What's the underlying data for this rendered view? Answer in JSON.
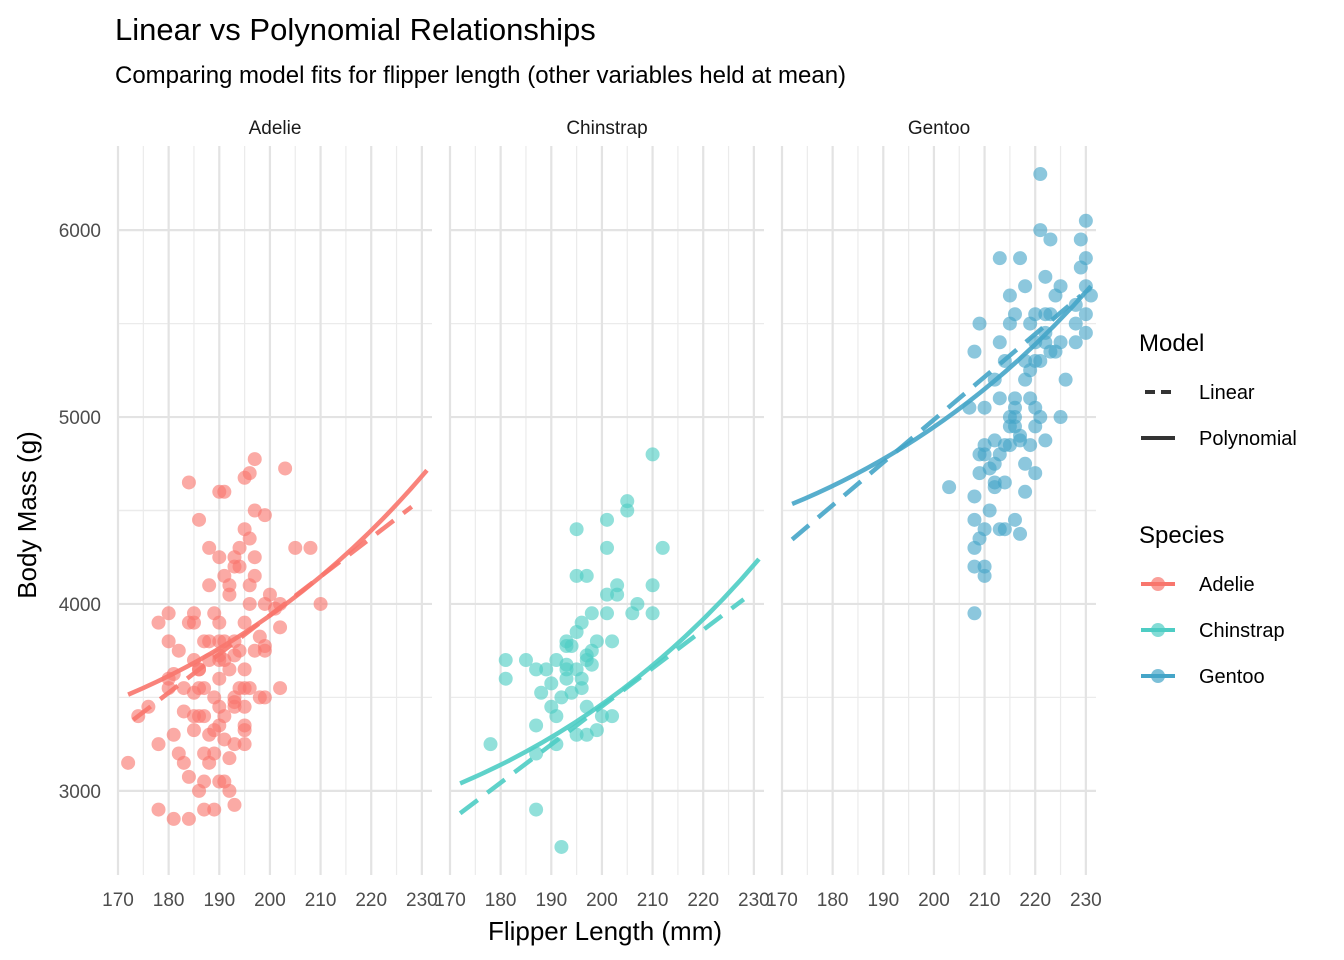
{
  "title": "Linear vs Polynomial Relationships",
  "subtitle": "Comparing model fits for flipper length (other variables held at mean)",
  "chart_data": {
    "type": "scatter",
    "facet_by": "species",
    "xlabel": "Flipper Length (mm)",
    "ylabel": "Body Mass (g)",
    "xlim": [
      170,
      232
    ],
    "ylim": [
      2550,
      6450
    ],
    "x_ticks": [
      170,
      180,
      190,
      200,
      210,
      220,
      230
    ],
    "y_ticks": [
      3000,
      4000,
      5000,
      6000
    ],
    "grid": true,
    "legend_position": "right",
    "legends": {
      "model": {
        "title": "Model",
        "items": [
          "Linear",
          "Polynomial"
        ]
      },
      "species": {
        "title": "Species",
        "items": [
          "Adelie",
          "Chinstrap",
          "Gentoo"
        ]
      }
    },
    "colors": {
      "Adelie": "#F8766D",
      "Chinstrap": "#4ECDC4",
      "Gentoo": "#45A5C8"
    },
    "facets": [
      {
        "name": "Adelie",
        "points": [
          [
            172,
            3150
          ],
          [
            174,
            3400
          ],
          [
            176,
            3450
          ],
          [
            178,
            3250
          ],
          [
            178,
            3900
          ],
          [
            178,
            2900
          ],
          [
            180,
            3800
          ],
          [
            180,
            3950
          ],
          [
            180,
            3550
          ],
          [
            180,
            3600
          ],
          [
            181,
            3625
          ],
          [
            181,
            3300
          ],
          [
            181,
            2850
          ],
          [
            182,
            3750
          ],
          [
            182,
            3200
          ],
          [
            183,
            3425
          ],
          [
            183,
            3150
          ],
          [
            183,
            3550
          ],
          [
            184,
            3075
          ],
          [
            184,
            3900
          ],
          [
            184,
            2850
          ],
          [
            184,
            4650
          ],
          [
            185,
            3325
          ],
          [
            185,
            3900
          ],
          [
            185,
            3525
          ],
          [
            185,
            3400
          ],
          [
            185,
            3700
          ],
          [
            185,
            3950
          ],
          [
            186,
            3650
          ],
          [
            186,
            3000
          ],
          [
            186,
            3400
          ],
          [
            186,
            3550
          ],
          [
            186,
            3650
          ],
          [
            186,
            4450
          ],
          [
            187,
            3800
          ],
          [
            187,
            3200
          ],
          [
            187,
            3400
          ],
          [
            187,
            3050
          ],
          [
            187,
            3550
          ],
          [
            187,
            2900
          ],
          [
            188,
            3300
          ],
          [
            188,
            3150
          ],
          [
            188,
            3800
          ],
          [
            188,
            3700
          ],
          [
            188,
            4100
          ],
          [
            188,
            4300
          ],
          [
            189,
            3325
          ],
          [
            189,
            3200
          ],
          [
            189,
            3500
          ],
          [
            189,
            3950
          ],
          [
            189,
            2900
          ],
          [
            190,
            3800
          ],
          [
            190,
            3600
          ],
          [
            190,
            3450
          ],
          [
            190,
            4250
          ],
          [
            190,
            3700
          ],
          [
            190,
            3900
          ],
          [
            190,
            3050
          ],
          [
            190,
            3350
          ],
          [
            190,
            4600
          ],
          [
            190,
            3725
          ],
          [
            191,
            3275
          ],
          [
            191,
            3700
          ],
          [
            191,
            4150
          ],
          [
            191,
            3400
          ],
          [
            191,
            3800
          ],
          [
            191,
            4600
          ],
          [
            191,
            3050
          ],
          [
            192,
            3000
          ],
          [
            192,
            3650
          ],
          [
            192,
            4050
          ],
          [
            192,
            4100
          ],
          [
            192,
            3175
          ],
          [
            193,
            3450
          ],
          [
            193,
            3800
          ],
          [
            193,
            4200
          ],
          [
            193,
            3475
          ],
          [
            193,
            2925
          ],
          [
            193,
            3500
          ],
          [
            193,
            4250
          ],
          [
            193,
            3250
          ],
          [
            193,
            3725
          ],
          [
            194,
            3550
          ],
          [
            194,
            4300
          ],
          [
            194,
            4200
          ],
          [
            194,
            3750
          ],
          [
            195,
            3325
          ],
          [
            195,
            3900
          ],
          [
            195,
            4400
          ],
          [
            195,
            3250
          ],
          [
            195,
            3650
          ],
          [
            195,
            3350
          ],
          [
            195,
            4675
          ],
          [
            195,
            3450
          ],
          [
            195,
            3550
          ],
          [
            196,
            4000
          ],
          [
            196,
            4350
          ],
          [
            196,
            4100
          ],
          [
            196,
            4700
          ],
          [
            196,
            3550
          ],
          [
            197,
            4250
          ],
          [
            197,
            3750
          ],
          [
            197,
            4500
          ],
          [
            197,
            4775
          ],
          [
            197,
            4150
          ],
          [
            198,
            3500
          ],
          [
            198,
            3825
          ],
          [
            199,
            3775
          ],
          [
            199,
            4000
          ],
          [
            199,
            3500
          ],
          [
            199,
            3750
          ],
          [
            199,
            4475
          ],
          [
            200,
            4050
          ],
          [
            201,
            3975
          ],
          [
            202,
            3875
          ],
          [
            202,
            4000
          ],
          [
            202,
            3550
          ],
          [
            203,
            4725
          ],
          [
            205,
            4300
          ],
          [
            208,
            4300
          ],
          [
            210,
            4000
          ]
        ],
        "linear": {
          "x": [
            173,
            228
          ],
          "y": [
            3380,
            4520
          ]
        },
        "polynomial": {
          "x": [
            172,
            231
          ],
          "y": [
            3515,
            4715
          ]
        }
      },
      {
        "name": "Chinstrap",
        "points": [
          [
            178,
            3250
          ],
          [
            181,
            3700
          ],
          [
            181,
            3600
          ],
          [
            185,
            3700
          ],
          [
            187,
            3650
          ],
          [
            187,
            3350
          ],
          [
            187,
            3200
          ],
          [
            187,
            2900
          ],
          [
            188,
            3525
          ],
          [
            189,
            3650
          ],
          [
            190,
            3450
          ],
          [
            190,
            3575
          ],
          [
            191,
            3250
          ],
          [
            191,
            3400
          ],
          [
            191,
            3700
          ],
          [
            192,
            3500
          ],
          [
            192,
            2700
          ],
          [
            193,
            3800
          ],
          [
            193,
            3675
          ],
          [
            193,
            3650
          ],
          [
            193,
            3775
          ],
          [
            193,
            3600
          ],
          [
            194,
            3525
          ],
          [
            194,
            3775
          ],
          [
            195,
            3300
          ],
          [
            195,
            3850
          ],
          [
            195,
            4150
          ],
          [
            195,
            4400
          ],
          [
            195,
            3650
          ],
          [
            196,
            3550
          ],
          [
            196,
            3600
          ],
          [
            196,
            3900
          ],
          [
            197,
            3725
          ],
          [
            197,
            3700
          ],
          [
            197,
            3450
          ],
          [
            197,
            3300
          ],
          [
            197,
            4150
          ],
          [
            198,
            3675
          ],
          [
            198,
            3950
          ],
          [
            198,
            3750
          ],
          [
            199,
            3325
          ],
          [
            199,
            3800
          ],
          [
            200,
            3400
          ],
          [
            201,
            3950
          ],
          [
            201,
            4300
          ],
          [
            201,
            4450
          ],
          [
            201,
            4050
          ],
          [
            202,
            3400
          ],
          [
            202,
            3800
          ],
          [
            203,
            4050
          ],
          [
            203,
            4100
          ],
          [
            205,
            4500
          ],
          [
            205,
            4550
          ],
          [
            206,
            3950
          ],
          [
            207,
            4000
          ],
          [
            210,
            4100
          ],
          [
            210,
            3950
          ],
          [
            210,
            4800
          ],
          [
            212,
            4300
          ]
        ],
        "linear": {
          "x": [
            172,
            228
          ],
          "y": [
            2880,
            4025
          ]
        },
        "polynomial": {
          "x": [
            172,
            231
          ],
          "y": [
            3040,
            4240
          ]
        }
      },
      {
        "name": "Gentoo",
        "points": [
          [
            203,
            4625
          ],
          [
            207,
            5050
          ],
          [
            208,
            4575
          ],
          [
            208,
            5350
          ],
          [
            208,
            4450
          ],
          [
            208,
            4300
          ],
          [
            208,
            4200
          ],
          [
            208,
            3950
          ],
          [
            209,
            4350
          ],
          [
            209,
            5500
          ],
          [
            209,
            4800
          ],
          [
            209,
            4700
          ],
          [
            210,
            4800
          ],
          [
            210,
            4150
          ],
          [
            210,
            4200
          ],
          [
            210,
            5050
          ],
          [
            210,
            4850
          ],
          [
            210,
            4400
          ],
          [
            211,
            4725
          ],
          [
            211,
            4500
          ],
          [
            212,
            4875
          ],
          [
            212,
            4650
          ],
          [
            212,
            4750
          ],
          [
            212,
            5200
          ],
          [
            212,
            4625
          ],
          [
            213,
            5850
          ],
          [
            213,
            5400
          ],
          [
            213,
            5100
          ],
          [
            213,
            4400
          ],
          [
            213,
            4800
          ],
          [
            214,
            4850
          ],
          [
            214,
            4650
          ],
          [
            214,
            4400
          ],
          [
            214,
            5300
          ],
          [
            215,
            5000
          ],
          [
            215,
            5500
          ],
          [
            215,
            5650
          ],
          [
            215,
            4950
          ],
          [
            215,
            4850
          ],
          [
            216,
            5050
          ],
          [
            216,
            5550
          ],
          [
            216,
            4950
          ],
          [
            216,
            4450
          ],
          [
            216,
            5000
          ],
          [
            216,
            5100
          ],
          [
            217,
            4875
          ],
          [
            217,
            5850
          ],
          [
            217,
            4900
          ],
          [
            217,
            4375
          ],
          [
            218,
            5700
          ],
          [
            218,
            4600
          ],
          [
            218,
            4750
          ],
          [
            218,
            5200
          ],
          [
            218,
            5300
          ],
          [
            219,
            5250
          ],
          [
            219,
            5500
          ],
          [
            219,
            4850
          ],
          [
            219,
            5100
          ],
          [
            220,
            5400
          ],
          [
            220,
            5050
          ],
          [
            220,
            5300
          ],
          [
            220,
            5550
          ],
          [
            220,
            4700
          ],
          [
            220,
            4950
          ],
          [
            221,
            5300
          ],
          [
            221,
            5000
          ],
          [
            221,
            6000
          ],
          [
            221,
            6300
          ],
          [
            222,
            5450
          ],
          [
            222,
            5750
          ],
          [
            222,
            4875
          ],
          [
            222,
            5550
          ],
          [
            222,
            5400
          ],
          [
            223,
            5950
          ],
          [
            223,
            5550
          ],
          [
            223,
            5350
          ],
          [
            224,
            5650
          ],
          [
            224,
            5350
          ],
          [
            225,
            5700
          ],
          [
            225,
            5400
          ],
          [
            225,
            5000
          ],
          [
            226,
            5200
          ],
          [
            228,
            5600
          ],
          [
            228,
            5400
          ],
          [
            228,
            5500
          ],
          [
            229,
            5800
          ],
          [
            229,
            5950
          ],
          [
            230,
            5700
          ],
          [
            230,
            6050
          ],
          [
            230,
            5850
          ],
          [
            230,
            5550
          ],
          [
            230,
            5450
          ],
          [
            231,
            5650
          ]
        ],
        "linear": {
          "x": [
            172,
            229
          ],
          "y": [
            4345,
            5650
          ]
        },
        "polynomial": {
          "x": [
            172,
            231
          ],
          "y": [
            4535,
            5700
          ]
        }
      }
    ]
  }
}
